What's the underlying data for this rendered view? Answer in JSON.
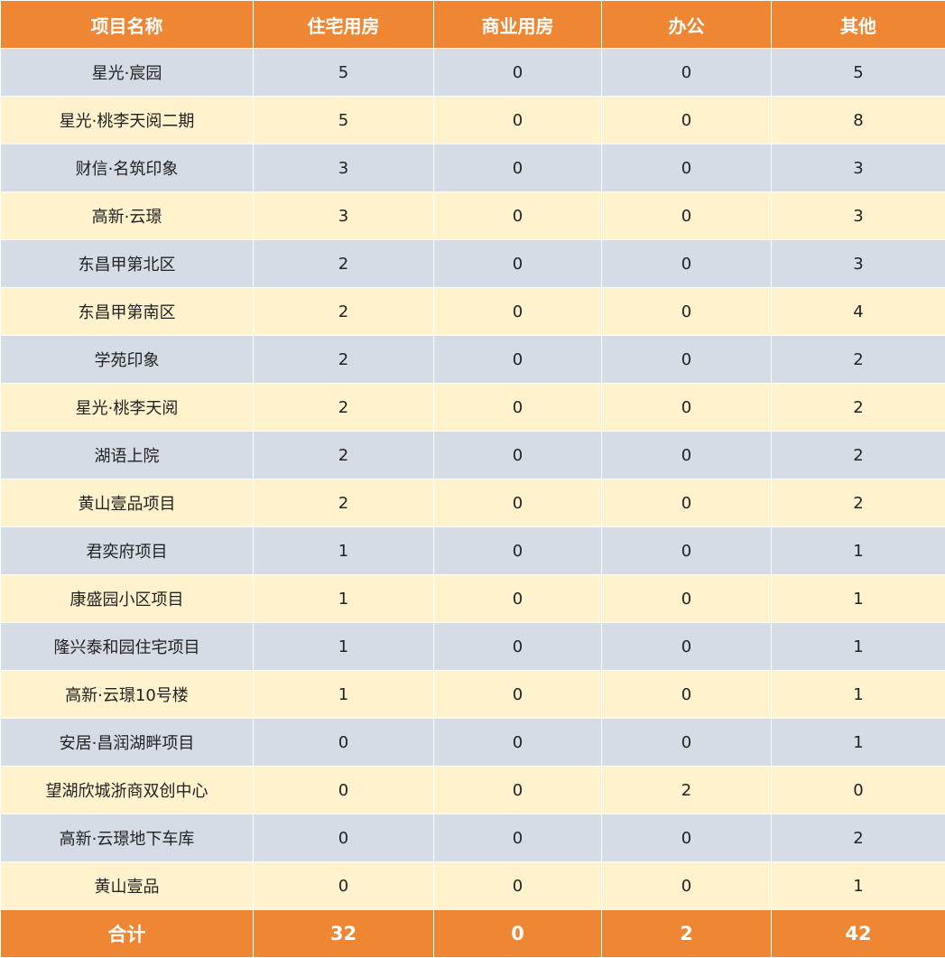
{
  "table": {
    "headers": [
      "项目名称",
      "住宅用房",
      "商业用房",
      "办公",
      "其他"
    ],
    "rows": [
      [
        "星光·宸园",
        "5",
        "0",
        "0",
        "5"
      ],
      [
        "星光·桃李天阅二期",
        "5",
        "0",
        "0",
        "8"
      ],
      [
        "财信·名筑印象",
        "3",
        "0",
        "0",
        "3"
      ],
      [
        "高新·云璟",
        "3",
        "0",
        "0",
        "3"
      ],
      [
        "东昌甲第北区",
        "2",
        "0",
        "0",
        "3"
      ],
      [
        "东昌甲第南区",
        "2",
        "0",
        "0",
        "4"
      ],
      [
        "学苑印象",
        "2",
        "0",
        "0",
        "2"
      ],
      [
        "星光·桃李天阅",
        "2",
        "0",
        "0",
        "2"
      ],
      [
        "湖语上院",
        "2",
        "0",
        "0",
        "2"
      ],
      [
        "黄山壹品项目",
        "2",
        "0",
        "0",
        "2"
      ],
      [
        "君奕府项目",
        "1",
        "0",
        "0",
        "1"
      ],
      [
        "康盛园小区项目",
        "1",
        "0",
        "0",
        "1"
      ],
      [
        "隆兴泰和园住宅项目",
        "1",
        "0",
        "0",
        "1"
      ],
      [
        "高新·云璟10号楼",
        "1",
        "0",
        "0",
        "1"
      ],
      [
        "安居·昌润湖畔项目",
        "0",
        "0",
        "0",
        "1"
      ],
      [
        "望湖欣城浙商双创中心",
        "0",
        "0",
        "2",
        "0"
      ],
      [
        "高新·云璟地下车库",
        "0",
        "0",
        "0",
        "2"
      ],
      [
        "黄山壹品",
        "0",
        "0",
        "0",
        "1"
      ]
    ],
    "total": [
      "合计",
      "32",
      "0",
      "2",
      "42"
    ]
  },
  "colors": {
    "header_bg": "#ef8633",
    "header_text": "#ffffff",
    "row_odd_bg": "#d6dce5",
    "row_even_bg": "#fff2cc",
    "body_text": "#222222"
  }
}
